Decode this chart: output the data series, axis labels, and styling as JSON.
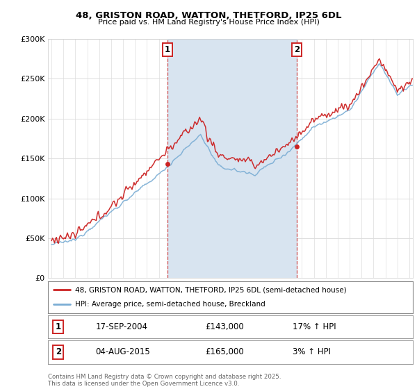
{
  "title1": "48, GRISTON ROAD, WATTON, THETFORD, IP25 6DL",
  "title2": "Price paid vs. HM Land Registry's House Price Index (HPI)",
  "legend_line1": "48, GRISTON ROAD, WATTON, THETFORD, IP25 6DL (semi-detached house)",
  "legend_line2": "HPI: Average price, semi-detached house, Breckland",
  "annotation1_label": "1",
  "annotation1_date": "17-SEP-2004",
  "annotation1_price": "£143,000",
  "annotation1_hpi": "17% ↑ HPI",
  "annotation2_label": "2",
  "annotation2_date": "04-AUG-2015",
  "annotation2_price": "£165,000",
  "annotation2_hpi": "3% ↑ HPI",
  "footnote": "Contains HM Land Registry data © Crown copyright and database right 2025.\nThis data is licensed under the Open Government Licence v3.0.",
  "ylim": [
    0,
    300000
  ],
  "yticks": [
    0,
    50000,
    100000,
    150000,
    200000,
    250000,
    300000
  ],
  "ytick_labels": [
    "£0",
    "£50K",
    "£100K",
    "£150K",
    "£200K",
    "£250K",
    "£300K"
  ],
  "bg_white": "#ffffff",
  "plot_bg": "#ffffff",
  "span_color": "#d8e4f0",
  "red_color": "#cc2222",
  "blue_color": "#7aadd4",
  "vline_color": "#cc3333",
  "vline_x1": 2004.72,
  "vline_x2": 2015.59,
  "ann1_x": 2004.72,
  "ann2_x": 2015.59,
  "ann1_y_sale": 143000,
  "ann2_y_sale": 165000,
  "xmin": 1994.7,
  "xmax": 2025.3,
  "grid_color": "#dddddd"
}
